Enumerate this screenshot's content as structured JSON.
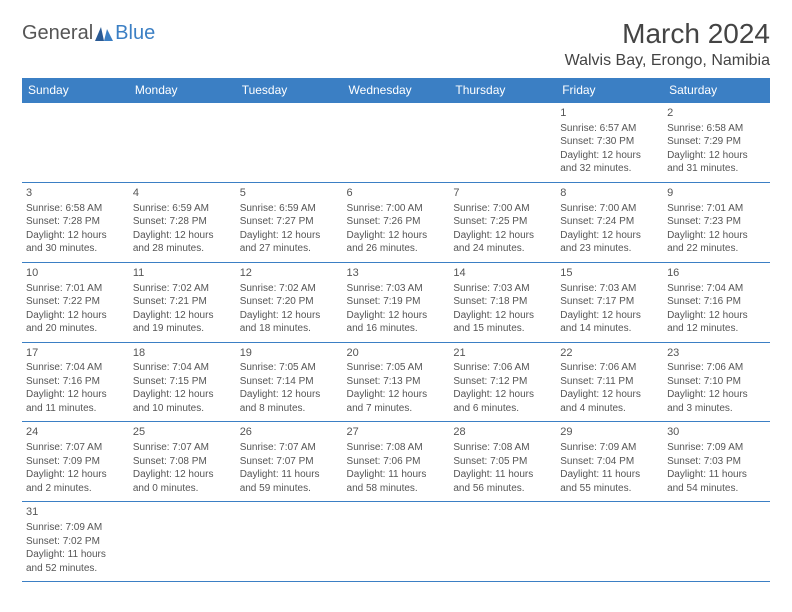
{
  "logo": {
    "part1": "General",
    "part2": "Blue"
  },
  "title": "March 2024",
  "location": "Walvis Bay, Erongo, Namibia",
  "colors": {
    "header_bg": "#3b7fc4",
    "header_text": "#ffffff",
    "text": "#555555",
    "border": "#3b7fc4"
  },
  "weekdays": [
    "Sunday",
    "Monday",
    "Tuesday",
    "Wednesday",
    "Thursday",
    "Friday",
    "Saturday"
  ],
  "days": [
    {
      "n": 1,
      "sr": "6:57 AM",
      "ss": "7:30 PM",
      "dl": "12 hours and 32 minutes."
    },
    {
      "n": 2,
      "sr": "6:58 AM",
      "ss": "7:29 PM",
      "dl": "12 hours and 31 minutes."
    },
    {
      "n": 3,
      "sr": "6:58 AM",
      "ss": "7:28 PM",
      "dl": "12 hours and 30 minutes."
    },
    {
      "n": 4,
      "sr": "6:59 AM",
      "ss": "7:28 PM",
      "dl": "12 hours and 28 minutes."
    },
    {
      "n": 5,
      "sr": "6:59 AM",
      "ss": "7:27 PM",
      "dl": "12 hours and 27 minutes."
    },
    {
      "n": 6,
      "sr": "7:00 AM",
      "ss": "7:26 PM",
      "dl": "12 hours and 26 minutes."
    },
    {
      "n": 7,
      "sr": "7:00 AM",
      "ss": "7:25 PM",
      "dl": "12 hours and 24 minutes."
    },
    {
      "n": 8,
      "sr": "7:00 AM",
      "ss": "7:24 PM",
      "dl": "12 hours and 23 minutes."
    },
    {
      "n": 9,
      "sr": "7:01 AM",
      "ss": "7:23 PM",
      "dl": "12 hours and 22 minutes."
    },
    {
      "n": 10,
      "sr": "7:01 AM",
      "ss": "7:22 PM",
      "dl": "12 hours and 20 minutes."
    },
    {
      "n": 11,
      "sr": "7:02 AM",
      "ss": "7:21 PM",
      "dl": "12 hours and 19 minutes."
    },
    {
      "n": 12,
      "sr": "7:02 AM",
      "ss": "7:20 PM",
      "dl": "12 hours and 18 minutes."
    },
    {
      "n": 13,
      "sr": "7:03 AM",
      "ss": "7:19 PM",
      "dl": "12 hours and 16 minutes."
    },
    {
      "n": 14,
      "sr": "7:03 AM",
      "ss": "7:18 PM",
      "dl": "12 hours and 15 minutes."
    },
    {
      "n": 15,
      "sr": "7:03 AM",
      "ss": "7:17 PM",
      "dl": "12 hours and 14 minutes."
    },
    {
      "n": 16,
      "sr": "7:04 AM",
      "ss": "7:16 PM",
      "dl": "12 hours and 12 minutes."
    },
    {
      "n": 17,
      "sr": "7:04 AM",
      "ss": "7:16 PM",
      "dl": "12 hours and 11 minutes."
    },
    {
      "n": 18,
      "sr": "7:04 AM",
      "ss": "7:15 PM",
      "dl": "12 hours and 10 minutes."
    },
    {
      "n": 19,
      "sr": "7:05 AM",
      "ss": "7:14 PM",
      "dl": "12 hours and 8 minutes."
    },
    {
      "n": 20,
      "sr": "7:05 AM",
      "ss": "7:13 PM",
      "dl": "12 hours and 7 minutes."
    },
    {
      "n": 21,
      "sr": "7:06 AM",
      "ss": "7:12 PM",
      "dl": "12 hours and 6 minutes."
    },
    {
      "n": 22,
      "sr": "7:06 AM",
      "ss": "7:11 PM",
      "dl": "12 hours and 4 minutes."
    },
    {
      "n": 23,
      "sr": "7:06 AM",
      "ss": "7:10 PM",
      "dl": "12 hours and 3 minutes."
    },
    {
      "n": 24,
      "sr": "7:07 AM",
      "ss": "7:09 PM",
      "dl": "12 hours and 2 minutes."
    },
    {
      "n": 25,
      "sr": "7:07 AM",
      "ss": "7:08 PM",
      "dl": "12 hours and 0 minutes."
    },
    {
      "n": 26,
      "sr": "7:07 AM",
      "ss": "7:07 PM",
      "dl": "11 hours and 59 minutes."
    },
    {
      "n": 27,
      "sr": "7:08 AM",
      "ss": "7:06 PM",
      "dl": "11 hours and 58 minutes."
    },
    {
      "n": 28,
      "sr": "7:08 AM",
      "ss": "7:05 PM",
      "dl": "11 hours and 56 minutes."
    },
    {
      "n": 29,
      "sr": "7:09 AM",
      "ss": "7:04 PM",
      "dl": "11 hours and 55 minutes."
    },
    {
      "n": 30,
      "sr": "7:09 AM",
      "ss": "7:03 PM",
      "dl": "11 hours and 54 minutes."
    },
    {
      "n": 31,
      "sr": "7:09 AM",
      "ss": "7:02 PM",
      "dl": "11 hours and 52 minutes."
    }
  ],
  "labels": {
    "sunrise": "Sunrise:",
    "sunset": "Sunset:",
    "daylight": "Daylight:"
  },
  "first_day_column": 5
}
